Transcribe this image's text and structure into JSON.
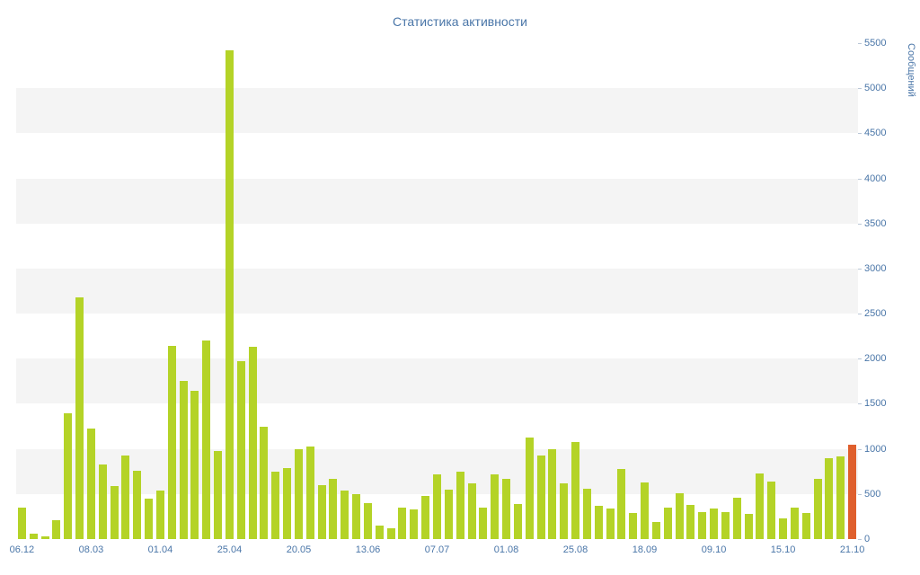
{
  "colors": {
    "bar": "#b4d327",
    "highlight": "#df5f2d",
    "axis_text": "#4a76a8",
    "band": "#f4f4f4",
    "tick_mark": "#b9c6d6"
  },
  "chart_data": {
    "type": "bar",
    "title": "Статистика активности",
    "ylabel": "Сообщений",
    "xlabel": "",
    "ylim": [
      0,
      5500
    ],
    "y_tick_step": 500,
    "y_tick_labels": [
      "0",
      "500",
      "1000",
      "1500",
      "2000",
      "2500",
      "3000",
      "3500",
      "4000",
      "4500",
      "5000",
      "5500"
    ],
    "grid": "alternating-horizontal-bands",
    "legend": "none",
    "x_tick_labels": [
      "06.12",
      "08.03",
      "01.04",
      "25.04",
      "20.05",
      "13.06",
      "07.07",
      "01.08",
      "25.08",
      "18.09",
      "09.10",
      "15.10",
      "21.10"
    ],
    "x_tick_every": 6,
    "values": [
      350,
      60,
      30,
      210,
      1400,
      2680,
      1230,
      830,
      590,
      930,
      760,
      450,
      540,
      2140,
      1750,
      1640,
      2200,
      980,
      5420,
      1970,
      2130,
      1250,
      750,
      790,
      1000,
      1030,
      600,
      670,
      540,
      500,
      400,
      150,
      120,
      350,
      330,
      480,
      720,
      550,
      750,
      620,
      350,
      720,
      670,
      390,
      1130,
      930,
      1000,
      620,
      1080,
      560,
      370,
      340,
      780,
      290,
      630,
      190,
      350,
      510,
      380,
      300,
      340,
      300,
      460,
      280,
      730,
      640,
      230,
      350,
      290,
      670,
      900,
      920,
      1050
    ],
    "highlight_last_bar": true
  }
}
